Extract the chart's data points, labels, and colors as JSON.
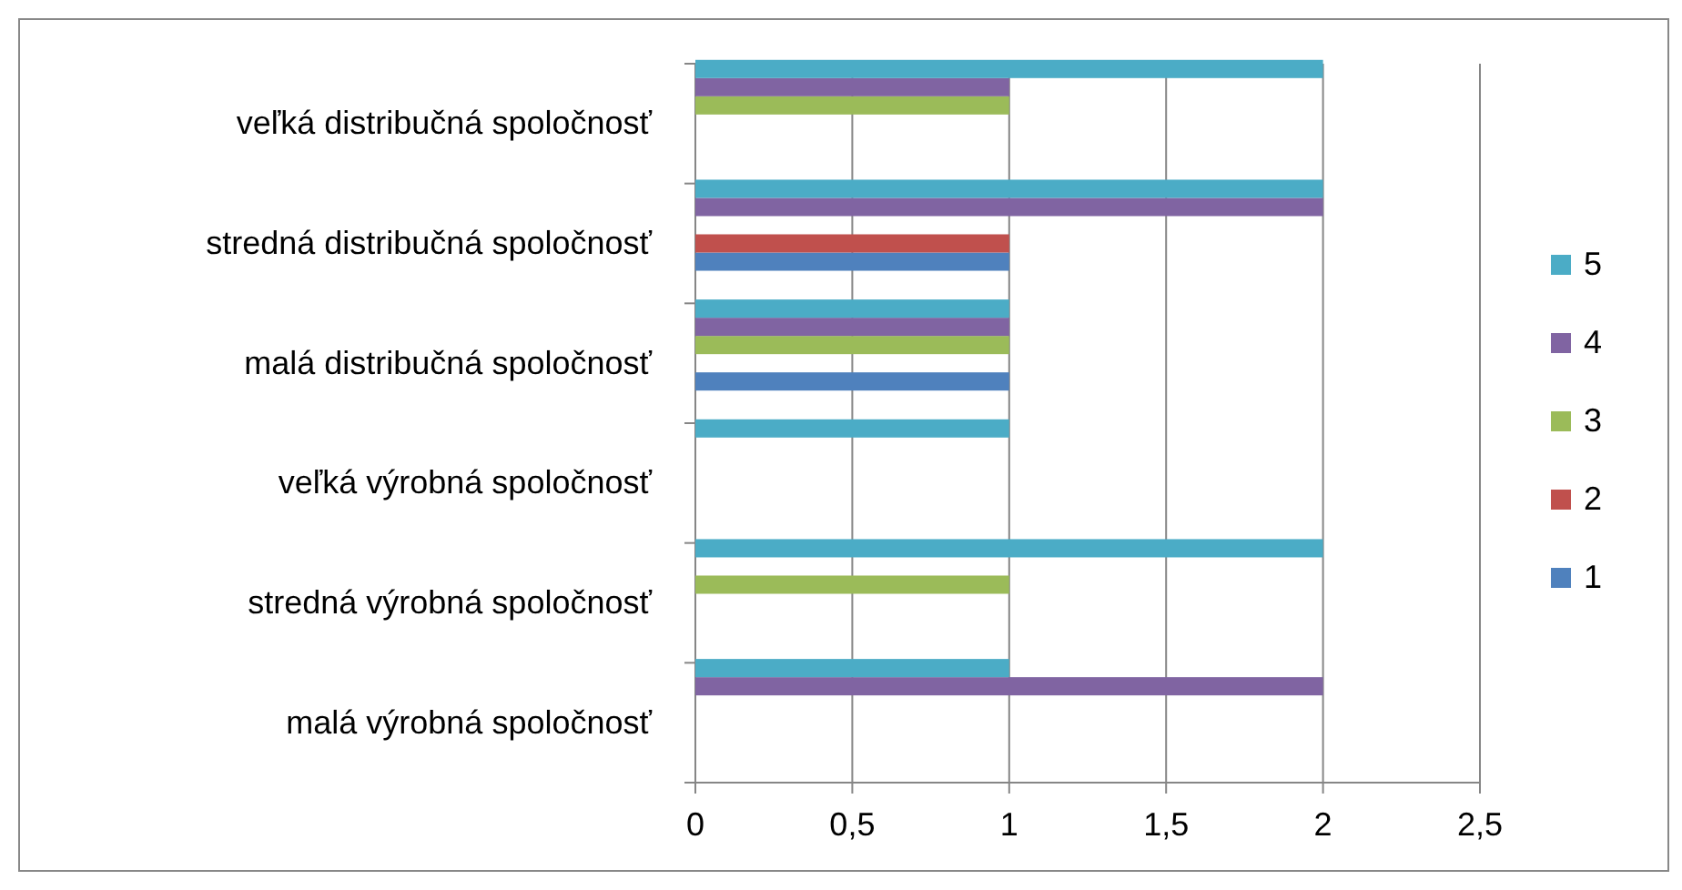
{
  "chart_data": {
    "type": "bar",
    "orientation": "horizontal",
    "categories": [
      "veľká distribučná spoločnosť",
      "stredná distribučná spoločnosť",
      "malá distribučná spoločnosť",
      "veľká výrobná spoločnosť",
      "stredná výrobná spoločnosť",
      "malá výrobná spoločnosť"
    ],
    "series": [
      {
        "name": "1",
        "color": "#4f81bd",
        "values": [
          null,
          1,
          1,
          null,
          null,
          null
        ]
      },
      {
        "name": "2",
        "color": "#c0504d",
        "values": [
          null,
          1,
          null,
          null,
          null,
          null
        ]
      },
      {
        "name": "3",
        "color": "#9bbb59",
        "values": [
          1,
          null,
          1,
          null,
          1,
          null
        ]
      },
      {
        "name": "4",
        "color": "#8064a2",
        "values": [
          1,
          2,
          1,
          null,
          null,
          2
        ]
      },
      {
        "name": "5",
        "color": "#4bacc6",
        "values": [
          2,
          2,
          1,
          1,
          2,
          1
        ]
      }
    ],
    "xlim": [
      0,
      2.5
    ],
    "xticks": [
      0,
      {
        "value": 0.5,
        "label": "0,5"
      },
      1,
      {
        "value": 1.5,
        "label": "1,5"
      },
      2,
      {
        "value": 2.5,
        "label": "2,5"
      }
    ],
    "grid": "x",
    "legend": "right"
  }
}
